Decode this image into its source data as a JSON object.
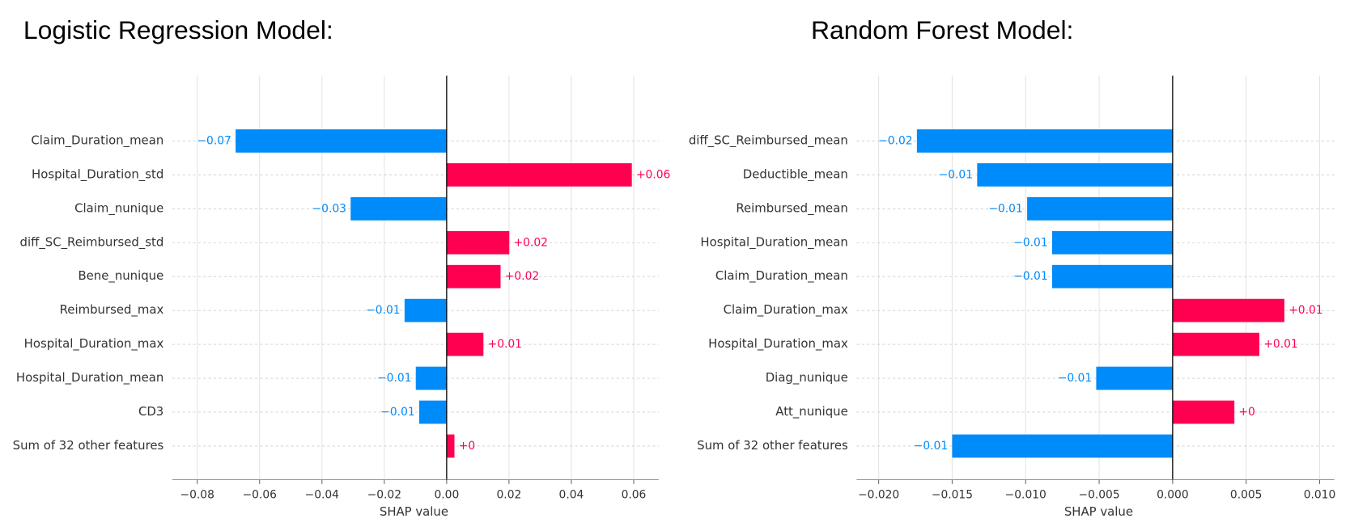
{
  "chart_data": [
    {
      "type": "bar",
      "orientation": "horizontal",
      "title": "Logistic Regression Model:",
      "xlabel": "SHAP value",
      "categories": [
        "Claim_Duration_mean",
        "Hospital_Duration_std",
        "Claim_nunique",
        "diff_SC_Reimbursed_std",
        "Bene_nunique",
        "Reimbursed_max",
        "Hospital_Duration_max",
        "Hospital_Duration_mean",
        "CD3",
        "Sum of 32 other features"
      ],
      "values": [
        -0.0677,
        0.0594,
        -0.0308,
        0.0201,
        0.0173,
        -0.0135,
        0.0118,
        -0.0099,
        -0.0088,
        0.0025
      ],
      "value_labels": [
        "−0.07",
        "+0.06",
        "−0.03",
        "+0.02",
        "+0.02",
        "−0.01",
        "+0.01",
        "−0.01",
        "−0.01",
        "+0"
      ],
      "positive_color": "#ff0051",
      "negative_color": "#008bfb",
      "xlim": [
        -0.088,
        0.068
      ],
      "xticks": [
        {
          "value": -0.08,
          "label": "−0.08"
        },
        {
          "value": -0.06,
          "label": "−0.06"
        },
        {
          "value": -0.04,
          "label": "−0.04"
        },
        {
          "value": -0.02,
          "label": "−0.02"
        },
        {
          "value": 0,
          "label": "0.00"
        },
        0.02,
        0.04,
        0.06
      ],
      "grid": true
    },
    {
      "type": "bar",
      "orientation": "horizontal",
      "title": "Random Forest Model:",
      "xlabel": "SHAP value",
      "categories": [
        "diff_SC_Reimbursed_mean",
        "Deductible_mean",
        "Reimbursed_mean",
        "Hospital_Duration_mean",
        "Claim_Duration_mean",
        "Claim_Duration_max",
        "Hospital_Duration_max",
        "Diag_nunique",
        "Att_nunique",
        "Sum of 32 other features"
      ],
      "values": [
        -0.0174,
        -0.0133,
        -0.0099,
        -0.0082,
        -0.0082,
        0.0076,
        0.0059,
        -0.0052,
        0.0042,
        -0.015
      ],
      "value_labels": [
        "−0.02",
        "−0.01",
        "−0.01",
        "−0.01",
        "−0.01",
        "+0.01",
        "+0.01",
        "−0.01",
        "+0",
        "−0.01"
      ],
      "positive_color": "#ff0051",
      "negative_color": "#008bfb",
      "xlim": [
        -0.0215,
        0.011
      ],
      "xticks": [
        {
          "value": -0.02,
          "label": "−0.020"
        },
        {
          "value": -0.015,
          "label": "−0.015"
        },
        {
          "value": -0.01,
          "label": "−0.010"
        },
        {
          "value": -0.005,
          "label": "−0.005"
        },
        {
          "value": 0,
          "label": "0.000"
        },
        0.005,
        {
          "value": 0.01,
          "label": "0.010"
        }
      ],
      "grid": true
    }
  ]
}
